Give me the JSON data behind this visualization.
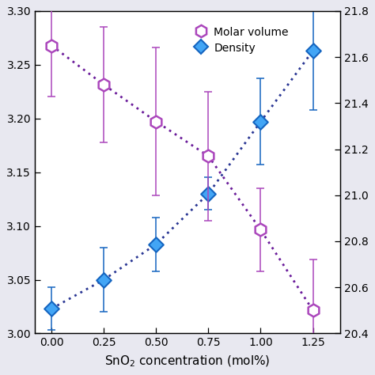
{
  "x": [
    0.0,
    0.25,
    0.5,
    0.75,
    1.0,
    1.25
  ],
  "density": [
    3.023,
    3.05,
    3.083,
    3.13,
    3.197,
    3.263
  ],
  "density_err": [
    0.02,
    0.03,
    0.025,
    0.015,
    0.04,
    0.055
  ],
  "molar_volume_right": [
    21.65,
    21.48,
    21.32,
    21.17,
    20.85,
    20.5
  ],
  "mv_right_err": [
    0.22,
    0.25,
    0.32,
    0.28,
    0.18,
    0.22
  ],
  "density_marker_color": "#1565C0",
  "density_face_color": "#42A5F5",
  "density_line_color": "#283593",
  "molar_volume_color": "#AB47BC",
  "molar_volume_face_color": "#FFFFFF",
  "molar_volume_line_color": "#6A1B9A",
  "xlim": [
    -0.08,
    1.38
  ],
  "ylim_left": [
    3.0,
    3.3
  ],
  "ylim_right": [
    20.4,
    21.8
  ],
  "yticks_left": [
    3.0,
    3.05,
    3.1,
    3.15,
    3.2,
    3.25,
    3.3
  ],
  "yticks_right": [
    20.4,
    20.6,
    20.8,
    21.0,
    21.2,
    21.4,
    21.6,
    21.8
  ],
  "xticks": [
    0.0,
    0.25,
    0.5,
    0.75,
    1.0,
    1.25
  ],
  "xlabel": "SnO$_2$ concentration (mol%)",
  "legend_density": "Density",
  "legend_molar": "Molar volume",
  "bg_color": "#FFFFFF",
  "fig_bg_color": "#E8E8F0"
}
